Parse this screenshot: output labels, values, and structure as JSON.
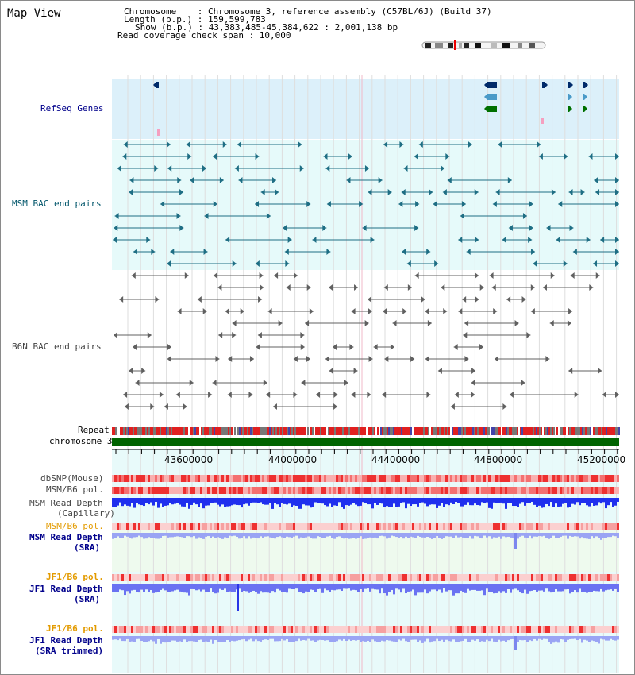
{
  "title": "Map View",
  "info": {
    "chromosome": "Chromosome    : Chromosome 3, reference assembly (C57BL/6J) (Build 37)",
    "length": "Length (b.p.) : 159,599,783",
    "show": "Show (b.p.) : 43,383,485-45,384,622 : 2,001,138 bp",
    "span": "Read coverage check span : 10,000"
  },
  "tracks": {
    "refseq": "RefSeq Genes",
    "msm_bac": "MSM BAC end pairs",
    "b6n_bac": "B6N BAC end pairs",
    "repeat": "Repeat",
    "chromosome": "chromosome 3",
    "dbsnp": "dbSNP(Mouse)",
    "msm_b6_pol_1": "MSM/B6 pol.",
    "msm_read_depth_cap": "MSM Read Depth",
    "msm_read_depth_cap_sub": "(Capillary)",
    "msm_b6_pol_2": "MSM/B6 pol.",
    "msm_read_depth_sra": "MSM Read Depth",
    "msm_read_depth_sra_sub": "(SRA)",
    "jf1_b6_pol_1": "JF1/B6 pol.",
    "jf1_read_depth_sra": "JF1 Read Depth",
    "jf1_read_depth_sra_sub": "(SRA)",
    "jf1_b6_pol_2": "JF1/B6 pol.",
    "jf1_read_depth_trim": "JF1 Read Depth",
    "jf1_read_depth_trim_sub": "(SRA trimmed)"
  },
  "axis": {
    "ticks": [
      "43600000",
      "44000000",
      "44400000",
      "44800000",
      "45200000"
    ]
  },
  "colors": {
    "refseq_bg": "#dcf0fa",
    "msm_bac_bg": "#e6fafa",
    "chromosome_bar": "#006400",
    "depth_blue": "#2222ee",
    "pol_red": "#ee2222",
    "orange_label": "#e39b00"
  }
}
